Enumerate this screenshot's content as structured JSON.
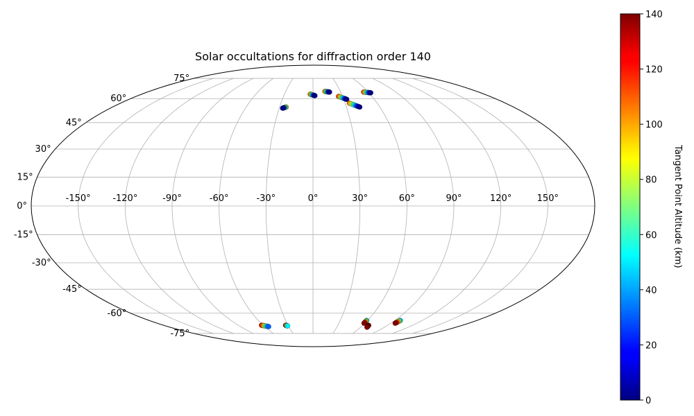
{
  "chart_data": {
    "type": "scatter",
    "projection": "mollweide",
    "title": "Solar occultations for diffraction order 140",
    "grid": true,
    "xlim": [
      -180,
      180
    ],
    "ylim": [
      -90,
      90
    ],
    "lon_ticks": [
      -150,
      -120,
      -90,
      -60,
      -30,
      0,
      30,
      60,
      90,
      120,
      150
    ],
    "lon_tick_labels": [
      "-150°",
      "-120°",
      "-90°",
      "-60°",
      "-30°",
      "0°",
      "30°",
      "60°",
      "90°",
      "120°",
      "150°"
    ],
    "lat_ticks": [
      75,
      60,
      45,
      30,
      15,
      0,
      -15,
      -30,
      -45,
      -60,
      -75
    ],
    "lat_tick_labels": [
      "75°",
      "60°",
      "45°",
      "30°",
      "15°",
      "0°",
      "-15°",
      "-30°",
      "-45°",
      "-60°",
      "-75°"
    ],
    "colorbar": {
      "label": "Tangent Point Altitude (km)",
      "colormap": "jet",
      "range": [
        0,
        140
      ],
      "ticks": [
        0,
        20,
        40,
        60,
        80,
        100,
        120,
        140
      ],
      "tick_labels": [
        "0",
        "20",
        "40",
        "60",
        "80",
        "100",
        "120",
        "140"
      ]
    },
    "tracks": [
      {
        "lon_start": -24,
        "lat_start": 54.5,
        "lon_end": -27,
        "lat_end": 53.8,
        "alt_start": 100,
        "alt_end": 0
      },
      {
        "lon_start": -3,
        "lat_start": 63,
        "lon_end": 2,
        "lat_end": 62,
        "alt_start": 110,
        "alt_end": 0
      },
      {
        "lon_start": 13,
        "lat_start": 65,
        "lon_end": 18,
        "lat_end": 64.5,
        "alt_start": 110,
        "alt_end": 0
      },
      {
        "lon_start": 26,
        "lat_start": 61.5,
        "lon_end": 33,
        "lat_end": 59.5,
        "alt_start": 120,
        "alt_end": 0
      },
      {
        "lon_start": 34,
        "lat_start": 57,
        "lon_end": 42,
        "lat_end": 54.5,
        "alt_start": 110,
        "alt_end": 0
      },
      {
        "lon_start": 55,
        "lat_start": 64.5,
        "lon_end": 62,
        "lat_end": 64,
        "alt_start": 120,
        "alt_end": 0
      },
      {
        "lon_start": -62,
        "lat_start": -68.5,
        "lon_end": -55,
        "lat_end": -69.5,
        "alt_start": 130,
        "alt_end": 30
      },
      {
        "lon_start": -33,
        "lat_start": -68.5,
        "lon_end": -31,
        "lat_end": -69,
        "alt_start": 135,
        "alt_end": 50
      },
      {
        "lon_start": 59,
        "lat_start": -65,
        "lon_end": 59,
        "lat_end": -67,
        "alt_start": 40,
        "alt_end": 140
      },
      {
        "lon_start": 67,
        "lat_start": -68.5,
        "lon_end": 68,
        "lat_end": -70,
        "alt_start": 135,
        "alt_end": 140
      },
      {
        "lon_start": 96,
        "lat_start": -65,
        "lon_end": 95,
        "lat_end": -67,
        "alt_start": 40,
        "alt_end": 140
      }
    ]
  }
}
